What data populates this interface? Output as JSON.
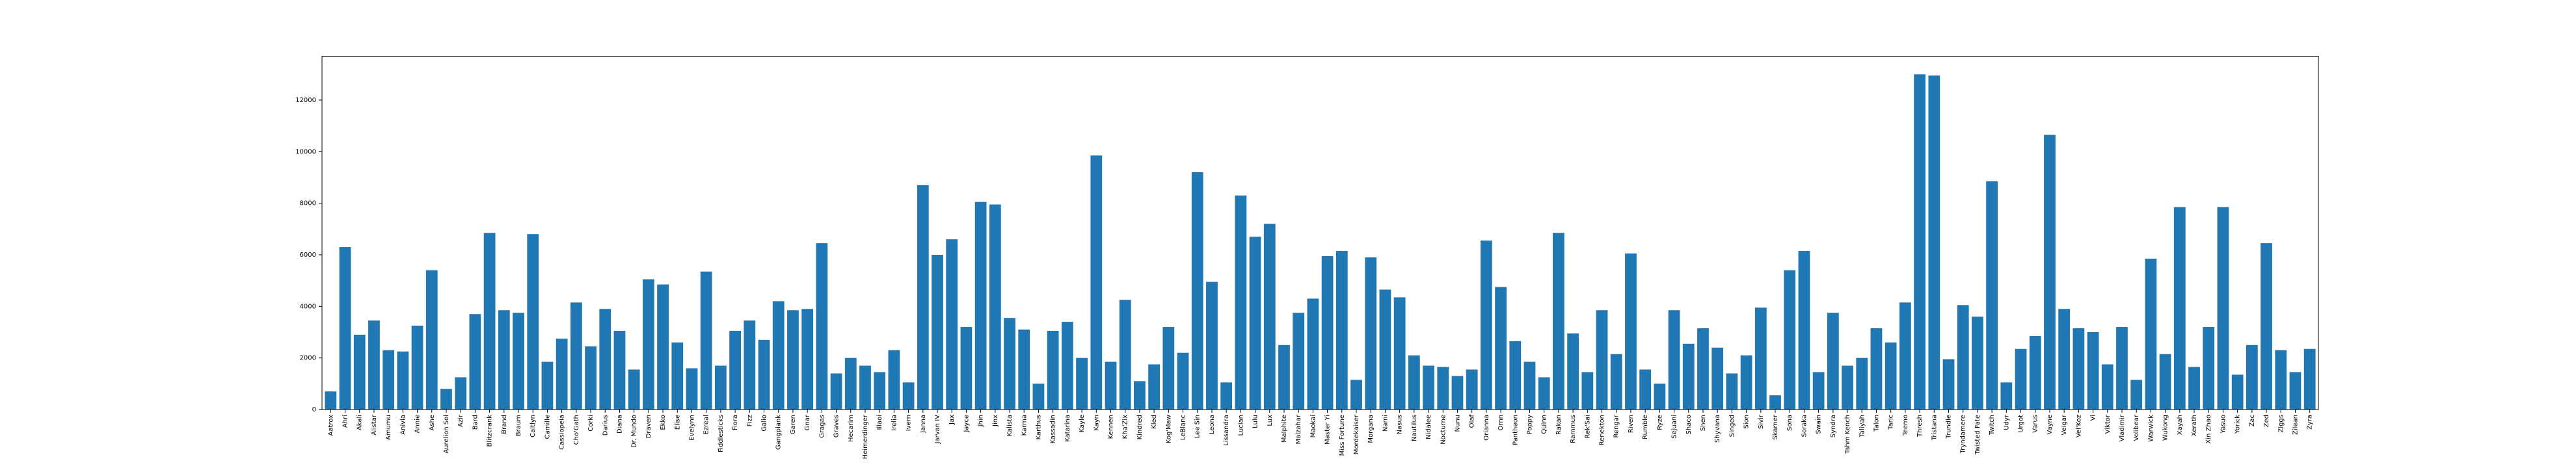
{
  "chart_data": {
    "type": "bar",
    "title": "",
    "xlabel": "",
    "ylabel": "",
    "ylim": [
      0,
      13700
    ],
    "yticks": [
      0,
      2000,
      4000,
      6000,
      8000,
      10000,
      12000
    ],
    "grid": false,
    "bar_color": "#1f77b4",
    "categories": [
      "Aatrox",
      "Ahri",
      "Akali",
      "Alistar",
      "Amumu",
      "Anivia",
      "Annie",
      "Ashe",
      "Aurelion Sol",
      "Azir",
      "Bard",
      "Blitzcrank",
      "Brand",
      "Braum",
      "Caitlyn",
      "Camille",
      "Cassiopeia",
      "Cho'Gath",
      "Corki",
      "Darius",
      "Diana",
      "Dr. Mundo",
      "Draven",
      "Ekko",
      "Elise",
      "Evelynn",
      "Ezreal",
      "Fiddlesticks",
      "Fiora",
      "Fizz",
      "Galio",
      "Gangplank",
      "Garen",
      "Gnar",
      "Gragas",
      "Graves",
      "Hecarim",
      "Heimerdinger",
      "Illaoi",
      "Irelia",
      "Ivern",
      "Janna",
      "Jarvan IV",
      "Jax",
      "Jayce",
      "Jhin",
      "Jinx",
      "Kalista",
      "Karma",
      "Karthus",
      "Kassadin",
      "Katarina",
      "Kayle",
      "Kayn",
      "Kennen",
      "Kha'Zix",
      "Kindred",
      "Kled",
      "Kog'Maw",
      "LeBlanc",
      "Lee Sin",
      "Leona",
      "Lissandra",
      "Lucian",
      "Lulu",
      "Lux",
      "Malphite",
      "Malzahar",
      "Maokai",
      "Master Yi",
      "Miss Fortune",
      "Mordekaiser",
      "Morgana",
      "Nami",
      "Nasus",
      "Nautilus",
      "Nidalee",
      "Nocturne",
      "Nunu",
      "Olaf",
      "Orianna",
      "Ornn",
      "Pantheon",
      "Poppy",
      "Quinn",
      "Rakan",
      "Rammus",
      "Rek'Sai",
      "Renekton",
      "Rengar",
      "Riven",
      "Rumble",
      "Ryze",
      "Sejuani",
      "Shaco",
      "Shen",
      "Shyvana",
      "Singed",
      "Sion",
      "Sivir",
      "Skarner",
      "Sona",
      "Soraka",
      "Swain",
      "Syndra",
      "Tahm Kench",
      "Taliyah",
      "Talon",
      "Taric",
      "Teemo",
      "Thresh",
      "Tristana",
      "Trundle",
      "Tryndamere",
      "Twisted Fate",
      "Twitch",
      "Udyr",
      "Urgot",
      "Varus",
      "Vayne",
      "Veigar",
      "Vel'Koz",
      "Vi",
      "Viktor",
      "Vladimir",
      "Volibear",
      "Warwick",
      "Wukong",
      "Xayah",
      "Xerath",
      "Xin Zhao",
      "Yasuo",
      "Yorick",
      "Zac",
      "Zed",
      "Ziggs",
      "Zilean",
      "Zyra"
    ],
    "values": [
      700,
      6300,
      2900,
      3450,
      2300,
      2250,
      3250,
      5400,
      800,
      1250,
      3700,
      6850,
      3850,
      3750,
      6800,
      1850,
      2750,
      4150,
      2450,
      3900,
      3050,
      1550,
      5050,
      4850,
      2600,
      1600,
      5350,
      1700,
      3050,
      3450,
      2700,
      4200,
      3850,
      3900,
      6450,
      1400,
      2000,
      1700,
      1450,
      2300,
      1050,
      8700,
      6000,
      6600,
      3200,
      8050,
      7950,
      3550,
      3100,
      1000,
      3050,
      3400,
      2000,
      9850,
      1850,
      4250,
      1100,
      1750,
      3200,
      2200,
      9200,
      4950,
      1050,
      8300,
      6700,
      7200,
      2500,
      3750,
      4300,
      5950,
      6150,
      1150,
      5900,
      4650,
      4350,
      2100,
      1700,
      1650,
      1300,
      1550,
      6550,
      4750,
      2650,
      1850,
      1250,
      6850,
      2950,
      1450,
      3850,
      2150,
      6050,
      1550,
      1000,
      3850,
      2550,
      3150,
      2400,
      1400,
      2100,
      3950,
      550,
      5400,
      6150,
      1450,
      3750,
      1700,
      2000,
      3150,
      2600,
      4150,
      13000,
      12950,
      1950,
      4050,
      3600,
      8850,
      1050,
      2350,
      2850,
      10650,
      3900,
      3150,
      3000,
      1750,
      3200,
      1150,
      5850,
      2150,
      7850,
      1650,
      3200,
      7850,
      1350,
      2500,
      6450,
      2300,
      1450,
      2350
    ]
  }
}
